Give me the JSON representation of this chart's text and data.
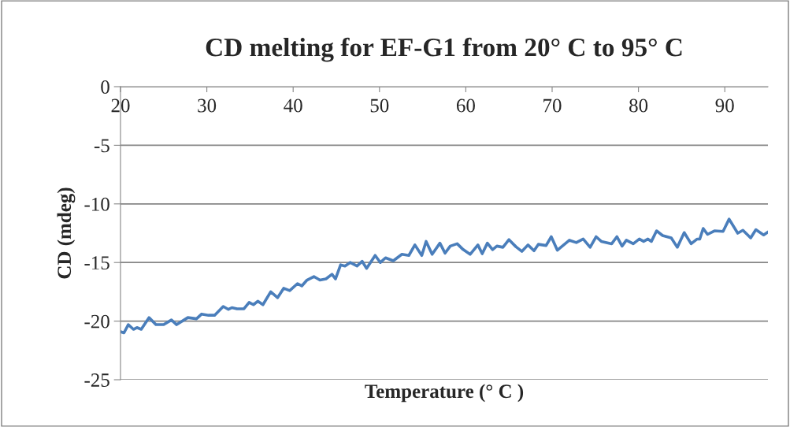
{
  "chart_data": {
    "type": "line",
    "title": "CD melting for EF-G1 from 20° C to 95° C",
    "xlabel": "Temperature (° C )",
    "ylabel": "CD (mdeg)",
    "xlim": [
      20,
      95
    ],
    "xticks": [
      20,
      30,
      40,
      50,
      60,
      70,
      80,
      90
    ],
    "ylim": [
      -25,
      0
    ],
    "yticks": [
      -25,
      -20,
      -15,
      -10,
      -5,
      0
    ],
    "grid": "y",
    "legend": false,
    "marker": "none",
    "line_style": "solid",
    "series": [
      {
        "color": "#4a7ebb",
        "x": [
          20,
          20.4,
          20.9,
          21.5,
          21.9,
          22.4,
          23.3,
          24.1,
          25.0,
          25.9,
          26.5,
          27.8,
          28.8,
          29.4,
          30.2,
          30.9,
          31.9,
          32.5,
          32.9,
          33.5,
          34.3,
          34.9,
          35.4,
          35.9,
          36.5,
          37.4,
          38.2,
          38.9,
          39.6,
          40.5,
          41.0,
          41.6,
          42.4,
          43.1,
          43.8,
          44.5,
          44.9,
          45.5,
          46.0,
          46.6,
          47.4,
          48.0,
          48.5,
          49.5,
          50.1,
          50.7,
          51.6,
          52.6,
          53.4,
          54.1,
          54.9,
          55.4,
          56.1,
          57.0,
          57.6,
          58.2,
          59.0,
          59.7,
          60.5,
          61.4,
          61.9,
          62.5,
          63.1,
          63.6,
          64.3,
          65.0,
          65.8,
          66.5,
          67.2,
          67.9,
          68.4,
          69.3,
          69.9,
          70.6,
          72.0,
          72.8,
          73.6,
          74.4,
          75.1,
          75.7,
          76.9,
          77.5,
          78.1,
          78.6,
          79.4,
          80.1,
          80.6,
          81.1,
          81.5,
          82.1,
          82.8,
          83.8,
          84.5,
          85.3,
          86.1,
          86.8,
          87.1,
          87.5,
          88.0,
          88.8,
          89.8,
          90.5,
          91.5,
          92.1,
          93.0,
          93.6,
          94.5,
          95.0
        ],
        "values": [
          -20.9,
          -21.0,
          -20.3,
          -20.7,
          -20.55,
          -20.7,
          -19.7,
          -20.3,
          -20.3,
          -19.9,
          -20.3,
          -19.7,
          -19.8,
          -19.4,
          -19.5,
          -19.5,
          -18.75,
          -19.0,
          -18.85,
          -18.95,
          -18.95,
          -18.4,
          -18.6,
          -18.3,
          -18.6,
          -17.5,
          -18.0,
          -17.2,
          -17.4,
          -16.8,
          -17.0,
          -16.5,
          -16.2,
          -16.5,
          -16.4,
          -16.0,
          -16.4,
          -15.2,
          -15.3,
          -15.0,
          -15.3,
          -14.9,
          -15.5,
          -14.4,
          -15.0,
          -14.6,
          -14.85,
          -14.3,
          -14.4,
          -13.5,
          -14.4,
          -13.2,
          -14.3,
          -13.35,
          -14.2,
          -13.6,
          -13.4,
          -13.9,
          -14.3,
          -13.5,
          -14.25,
          -13.35,
          -13.9,
          -13.6,
          -13.7,
          -13.05,
          -13.65,
          -14.05,
          -13.5,
          -14.0,
          -13.45,
          -13.55,
          -12.8,
          -13.95,
          -13.1,
          -13.3,
          -13.0,
          -13.7,
          -12.8,
          -13.2,
          -13.4,
          -12.8,
          -13.6,
          -13.1,
          -13.4,
          -13.0,
          -13.2,
          -13.0,
          -13.2,
          -12.3,
          -12.7,
          -12.9,
          -13.7,
          -12.45,
          -13.4,
          -13.0,
          -13.0,
          -12.1,
          -12.6,
          -12.3,
          -12.35,
          -11.3,
          -12.5,
          -12.25,
          -12.9,
          -12.2,
          -12.65,
          -12.4
        ]
      }
    ]
  }
}
